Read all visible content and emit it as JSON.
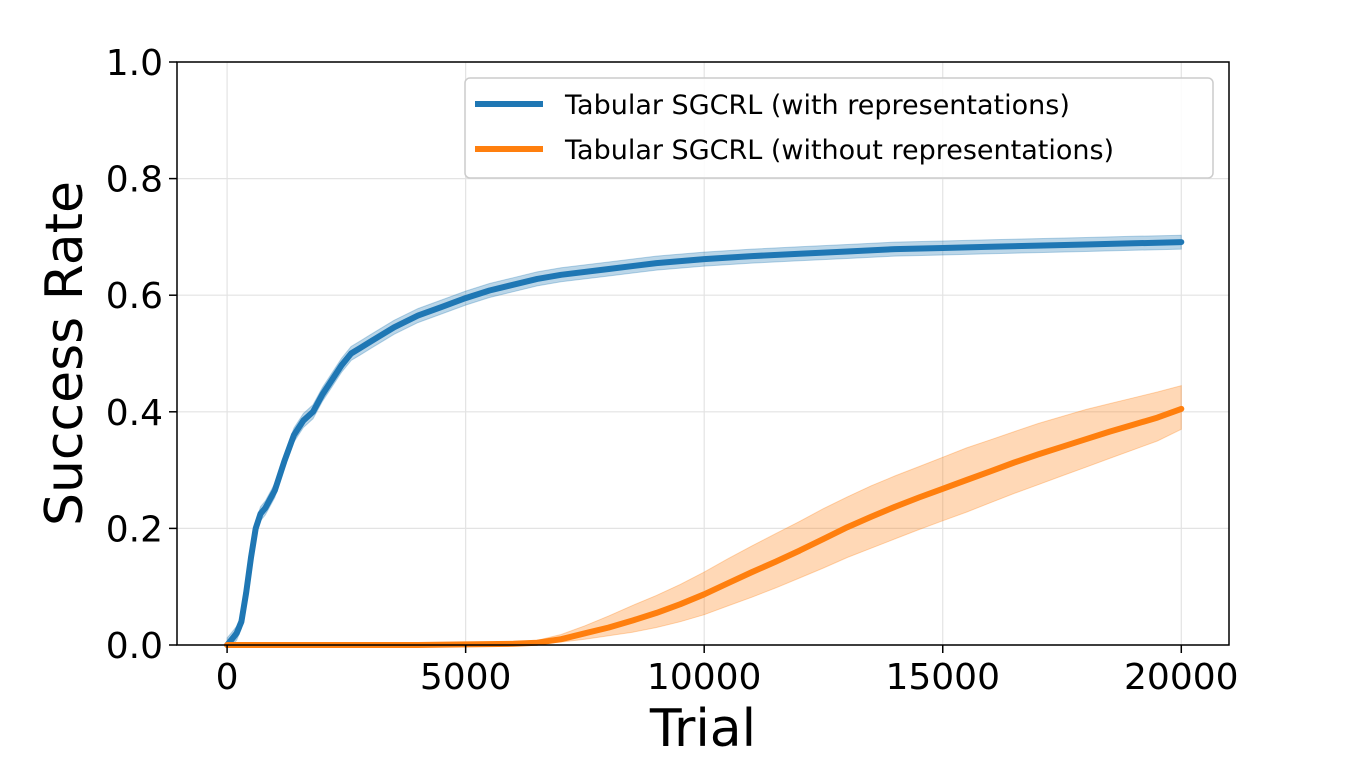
{
  "chart_data": {
    "type": "line",
    "title": "",
    "xlabel": "Trial",
    "ylabel": "Success Rate",
    "xlim": [
      -1050,
      21000
    ],
    "ylim": [
      0.0,
      1.0
    ],
    "xticks": [
      0,
      5000,
      10000,
      15000,
      20000
    ],
    "xtick_labels": [
      "0",
      "5000",
      "10000",
      "15000",
      "20000"
    ],
    "yticks": [
      0.0,
      0.2,
      0.4,
      0.6,
      0.8,
      1.0
    ],
    "ytick_labels": [
      "0.0",
      "0.2",
      "0.4",
      "0.6",
      "0.8",
      "1.0"
    ],
    "grid": true,
    "legend_position": "top-right",
    "series": [
      {
        "name": "Tabular SGCRL (with representations)",
        "color": "#1f77b4",
        "x": [
          0,
          100,
          200,
          300,
          400,
          500,
          600,
          700,
          800,
          1000,
          1200,
          1400,
          1600,
          1800,
          2000,
          2200,
          2400,
          2600,
          2800,
          3000,
          3500,
          4000,
          4500,
          5000,
          5500,
          6000,
          6500,
          7000,
          8000,
          9000,
          10000,
          11000,
          12000,
          13000,
          14000,
          15000,
          16000,
          17000,
          18000,
          19000,
          20000
        ],
        "y": [
          0.0,
          0.01,
          0.02,
          0.04,
          0.09,
          0.15,
          0.2,
          0.225,
          0.235,
          0.265,
          0.315,
          0.36,
          0.385,
          0.4,
          0.43,
          0.455,
          0.48,
          0.5,
          0.51,
          0.52,
          0.545,
          0.565,
          0.58,
          0.595,
          0.608,
          0.618,
          0.628,
          0.635,
          0.645,
          0.655,
          0.662,
          0.667,
          0.671,
          0.675,
          0.679,
          0.681,
          0.683,
          0.685,
          0.687,
          0.689,
          0.691
        ],
        "band": 0.012
      },
      {
        "name": "Tabular SGCRL (without representations)",
        "color": "#ff7f0e",
        "x": [
          0,
          1000,
          2000,
          3000,
          4000,
          5000,
          6000,
          6500,
          7000,
          7500,
          8000,
          8500,
          9000,
          9500,
          10000,
          10500,
          11000,
          11500,
          12000,
          12500,
          13000,
          13500,
          14000,
          14500,
          15000,
          15500,
          16000,
          16500,
          17000,
          17500,
          18000,
          18500,
          19000,
          19500,
          20000
        ],
        "y": [
          0.0,
          0.0,
          0.0,
          0.0,
          0.0,
          0.001,
          0.002,
          0.004,
          0.01,
          0.02,
          0.03,
          0.042,
          0.055,
          0.07,
          0.087,
          0.106,
          0.125,
          0.143,
          0.162,
          0.182,
          0.202,
          0.22,
          0.237,
          0.253,
          0.268,
          0.283,
          0.298,
          0.313,
          0.327,
          0.34,
          0.353,
          0.366,
          0.378,
          0.39,
          0.405
        ],
        "band_lo": [
          0.0,
          0.0,
          0.0,
          0.0,
          0.0,
          0.0,
          0.0,
          0.002,
          0.005,
          0.01,
          0.016,
          0.022,
          0.03,
          0.04,
          0.052,
          0.067,
          0.082,
          0.098,
          0.115,
          0.132,
          0.15,
          0.166,
          0.182,
          0.198,
          0.213,
          0.228,
          0.244,
          0.26,
          0.275,
          0.29,
          0.305,
          0.32,
          0.335,
          0.35,
          0.37
        ],
        "band_hi": [
          0.0,
          0.0,
          0.0,
          0.0,
          0.0,
          0.002,
          0.004,
          0.008,
          0.018,
          0.033,
          0.05,
          0.068,
          0.085,
          0.104,
          0.125,
          0.148,
          0.17,
          0.191,
          0.212,
          0.234,
          0.254,
          0.273,
          0.29,
          0.306,
          0.322,
          0.338,
          0.352,
          0.366,
          0.38,
          0.392,
          0.404,
          0.414,
          0.424,
          0.434,
          0.445
        ]
      }
    ]
  }
}
